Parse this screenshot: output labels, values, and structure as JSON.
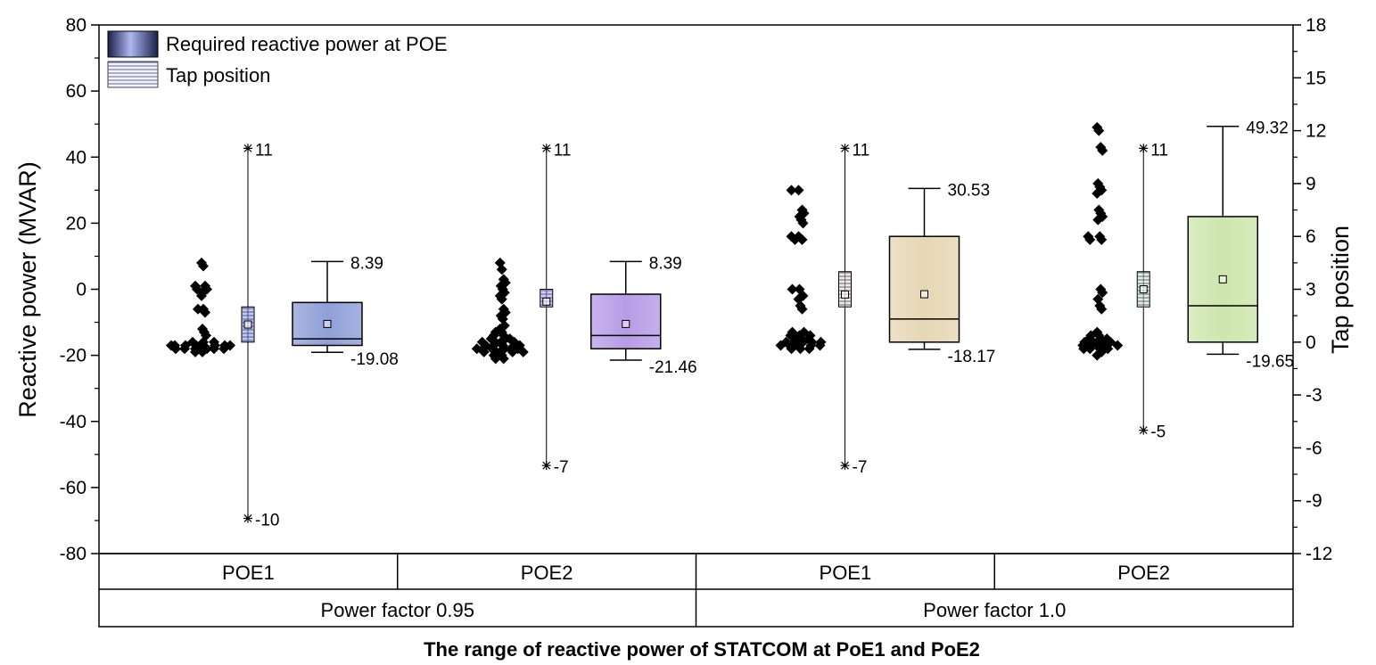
{
  "chart_data": {
    "type": "box",
    "title": "",
    "xlabel": "The range of reactive power of STATCOM at PoE1 and PoE2",
    "ylabel_left": "Reactive power (MVAR)",
    "ylabel_right": "Tap position",
    "ylim_left": [
      -80,
      80
    ],
    "yticks_left": [
      "80",
      "60",
      "40",
      "20",
      "0",
      "-20",
      "-40",
      "-60",
      "-80"
    ],
    "ylim_right": [
      -12,
      18
    ],
    "yticks_right": [
      "18",
      "15",
      "12",
      "9",
      "6",
      "3",
      "0",
      "-3",
      "-6",
      "-9",
      "-12"
    ],
    "legend": {
      "position": "top-left",
      "items": [
        {
          "label": "Required reactive power at POE"
        },
        {
          "label": "Tap position"
        }
      ]
    },
    "group_labels": [
      "Power factor 0.95",
      "Power factor 1.0"
    ],
    "category_labels": [
      "POE1",
      "POE2",
      "POE1",
      "POE2"
    ],
    "categories": [
      {
        "group": "Power factor 0.95",
        "name": "POE1",
        "color": "#8f9fd8",
        "reactive_power": {
          "min": -19.08,
          "q1": -17,
          "median": -15,
          "q3": -4,
          "max": 8.39,
          "mean": -10.5,
          "min_label": "-19.08",
          "max_label": "8.39",
          "points": [
            8,
            7,
            1,
            0,
            -1,
            1,
            0,
            -2,
            -6,
            -7,
            -6,
            -12,
            -13,
            -14,
            -17,
            -16,
            -17,
            -18,
            -19,
            -18,
            -17,
            -16,
            -17,
            -18,
            -17,
            -18,
            -19,
            -18,
            -17,
            -17,
            -16,
            -17,
            -18
          ]
        },
        "tap": {
          "min": -10,
          "max": 11,
          "q1": 0,
          "q3": 2,
          "mean": 1,
          "min_label": "-10",
          "max_label": "11"
        }
      },
      {
        "group": "Power factor 0.95",
        "name": "POE2",
        "color": "#b79ce6",
        "reactive_power": {
          "min": -21.46,
          "q1": -18,
          "median": -14,
          "q3": -1.5,
          "max": 8.39,
          "mean": -10.5,
          "min_label": "-21.46",
          "max_label": "8.39",
          "points": [
            8,
            6,
            3,
            2,
            1,
            0,
            -1,
            -2,
            -3,
            -6,
            -7,
            -8,
            -9,
            -11,
            -12,
            -13,
            -14,
            -15,
            -16,
            -17,
            -18,
            -19,
            -20,
            -21,
            -19,
            -18,
            -17,
            -16,
            -15,
            -18,
            -19,
            -17,
            -18,
            -20,
            -21,
            -18,
            -19,
            -17,
            -16,
            -15,
            -14,
            -13,
            -16,
            -17,
            -18,
            -19
          ]
        },
        "tap": {
          "min": -7,
          "max": 11,
          "q1": 2,
          "q3": 3,
          "mean": 2.3,
          "min_label": "-7",
          "max_label": "11"
        }
      },
      {
        "group": "Power factor 1.0",
        "name": "POE1",
        "color": "#e6d7b4",
        "reactive_power": {
          "min": -18.17,
          "q1": -16,
          "median": -9,
          "q3": 16,
          "max": 30.53,
          "mean": -1.5,
          "min_label": "-18.17",
          "max_label": "30.53",
          "points": [
            30,
            30,
            24,
            23,
            22,
            21,
            20,
            16,
            16,
            15,
            15,
            0,
            0,
            -2,
            -3,
            -5,
            -6,
            -13,
            -14,
            -15,
            -16,
            -17,
            -18,
            -16,
            -15,
            -14,
            -13,
            -16,
            -17,
            -18,
            -17,
            -16,
            -15,
            -14,
            -16,
            -17,
            -18,
            -17
          ]
        },
        "tap": {
          "min": -7,
          "max": 11,
          "q1": 2,
          "q3": 4,
          "mean": 2.7,
          "min_label": "-7",
          "max_label": "11"
        }
      },
      {
        "group": "Power factor 1.0",
        "name": "POE2",
        "color": "#cde6ad",
        "reactive_power": {
          "min": -19.65,
          "q1": -16,
          "median": -5,
          "q3": 22,
          "max": 49.32,
          "mean": 3,
          "min_label": "-19.65",
          "max_label": "49.32",
          "points": [
            49,
            48,
            43,
            42,
            32,
            31,
            30,
            29,
            24,
            23,
            22,
            21,
            16,
            15,
            16,
            15,
            0,
            -1,
            -3,
            -5,
            -6,
            -13,
            -14,
            -15,
            -16,
            -17,
            -18,
            -19,
            -20,
            -18,
            -17,
            -16,
            -15,
            -14,
            -16,
            -17,
            -18,
            -17,
            -16,
            -15,
            -17,
            -18
          ]
        },
        "tap": {
          "min": -5,
          "max": 11,
          "q1": 2,
          "q3": 4,
          "mean": 3,
          "min_label": "-5",
          "max_label": "11"
        }
      }
    ]
  }
}
